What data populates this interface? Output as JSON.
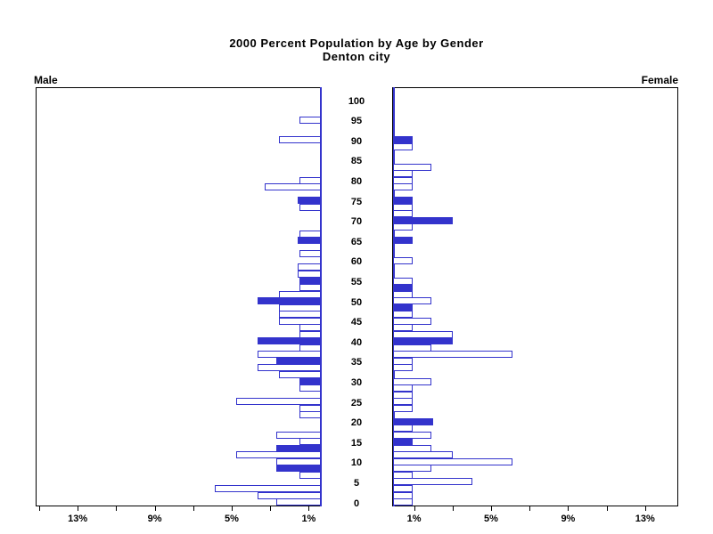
{
  "header": {
    "title": "2000 Percent Population by Age by Gender",
    "subtitle": "Denton city"
  },
  "panels": {
    "male_label": "Male",
    "female_label": "Female"
  },
  "chart_data": {
    "type": "bar",
    "variant": "population-pyramid",
    "title": "2000 Percent Population by Age by Gender",
    "subtitle": "Denton city",
    "x_axis": {
      "unit": "percent of population",
      "labeled_ticks_male_right_to_left": [
        "1%",
        "5%",
        "9%",
        "13%"
      ],
      "labeled_ticks_female_left_to_right": [
        "1%",
        "5%",
        "9%",
        "13%"
      ],
      "labeled_tick_values": [
        1,
        5,
        9,
        13
      ],
      "minor_tick_values": [
        1,
        3,
        5,
        7,
        9,
        11,
        13,
        15
      ],
      "max_pct_visible": 14.8,
      "male_axis_direction": "values increase leftward from center",
      "female_axis_direction": "values increase rightward from center"
    },
    "y_axis": {
      "label_values": [
        "0",
        "5",
        "10",
        "15",
        "20",
        "25",
        "30",
        "35",
        "40",
        "45",
        "50",
        "55",
        "60",
        "65",
        "70",
        "75",
        "80",
        "85",
        "90",
        "95",
        "100"
      ],
      "min": 0,
      "max": 100,
      "tick_interval": 5,
      "rows_per_tick": 3,
      "note": "61 uniform bar rows from age 0 (bottom row) to age 100 (top row); an age tick label aligns with every 3rd row"
    },
    "legend": "none; hollow bars are outlined, emphasized bars are solid filled",
    "rows_format": [
      "male_pct",
      "male_solid(0/1)",
      "female_pct",
      "female_solid(0/1)"
    ],
    "rows": [
      [
        2.3,
        0,
        1.0,
        0
      ],
      [
        3.3,
        0,
        1.0,
        0
      ],
      [
        5.5,
        0,
        1.0,
        0
      ],
      [
        0,
        0,
        4.1,
        0
      ],
      [
        1.1,
        0,
        1.0,
        0
      ],
      [
        2.3,
        1,
        2.0,
        0
      ],
      [
        2.3,
        0,
        6.2,
        0
      ],
      [
        4.4,
        0,
        3.1,
        0
      ],
      [
        2.3,
        1,
        2.0,
        0
      ],
      [
        1.1,
        0,
        1.0,
        1
      ],
      [
        2.3,
        0,
        2.0,
        0
      ],
      [
        0,
        0,
        1.0,
        0
      ],
      [
        0,
        0,
        2.1,
        1
      ],
      [
        1.1,
        0,
        0,
        0
      ],
      [
        1.1,
        0,
        1.0,
        0
      ],
      [
        4.4,
        0,
        1.0,
        0
      ],
      [
        0,
        0,
        1.0,
        0
      ],
      [
        1.1,
        0,
        1.0,
        0
      ],
      [
        1.1,
        1,
        2.0,
        0
      ],
      [
        2.2,
        0,
        0,
        0
      ],
      [
        3.3,
        0,
        1.0,
        0
      ],
      [
        2.3,
        1,
        1.0,
        0
      ],
      [
        3.3,
        0,
        6.2,
        0
      ],
      [
        1.1,
        0,
        2.0,
        0
      ],
      [
        3.3,
        1,
        3.1,
        1
      ],
      [
        1.1,
        0,
        3.1,
        0
      ],
      [
        1.1,
        0,
        1.0,
        0
      ],
      [
        2.2,
        0,
        2.0,
        0
      ],
      [
        2.2,
        0,
        1.0,
        0
      ],
      [
        2.2,
        0,
        1.0,
        1
      ],
      [
        3.3,
        1,
        2.0,
        0
      ],
      [
        2.2,
        0,
        1.0,
        0
      ],
      [
        1.1,
        0,
        1.0,
        1
      ],
      [
        1.1,
        1,
        1.0,
        0
      ],
      [
        1.2,
        0,
        0,
        0
      ],
      [
        1.2,
        0,
        0,
        0
      ],
      [
        0,
        0,
        1.0,
        0
      ],
      [
        1.1,
        0,
        0,
        0
      ],
      [
        0,
        0,
        0,
        0
      ],
      [
        1.2,
        1,
        1.0,
        1
      ],
      [
        1.1,
        0,
        0,
        0
      ],
      [
        0,
        0,
        1.0,
        0
      ],
      [
        0,
        0,
        3.1,
        1
      ],
      [
        0,
        0,
        1.0,
        0
      ],
      [
        1.1,
        0,
        1.0,
        0
      ],
      [
        1.2,
        1,
        1.0,
        1
      ],
      [
        0,
        0,
        0,
        0
      ],
      [
        2.9,
        0,
        1.0,
        0
      ],
      [
        1.1,
        0,
        1.0,
        0
      ],
      [
        0,
        0,
        1.0,
        0
      ],
      [
        0,
        0,
        2.0,
        0
      ],
      [
        0,
        0,
        0,
        0
      ],
      [
        0,
        0,
        0,
        0
      ],
      [
        0,
        0,
        1.0,
        0
      ],
      [
        2.2,
        0,
        1.0,
        1
      ],
      [
        0,
        0,
        0,
        0
      ],
      [
        0,
        0,
        0,
        0
      ],
      [
        1.1,
        0,
        0,
        0
      ],
      [
        0,
        0,
        0,
        0
      ],
      [
        0,
        0,
        0,
        0
      ],
      [
        0,
        0,
        0,
        0
      ]
    ],
    "colors": {
      "bar_outline": "#3333cc",
      "bar_solid_fill": "#3333cc",
      "bar_hollow_fill": "#ffffff",
      "frame": "#000000",
      "center_axis_line": "#3333cc",
      "text": "#000000",
      "background": "#ffffff"
    }
  }
}
